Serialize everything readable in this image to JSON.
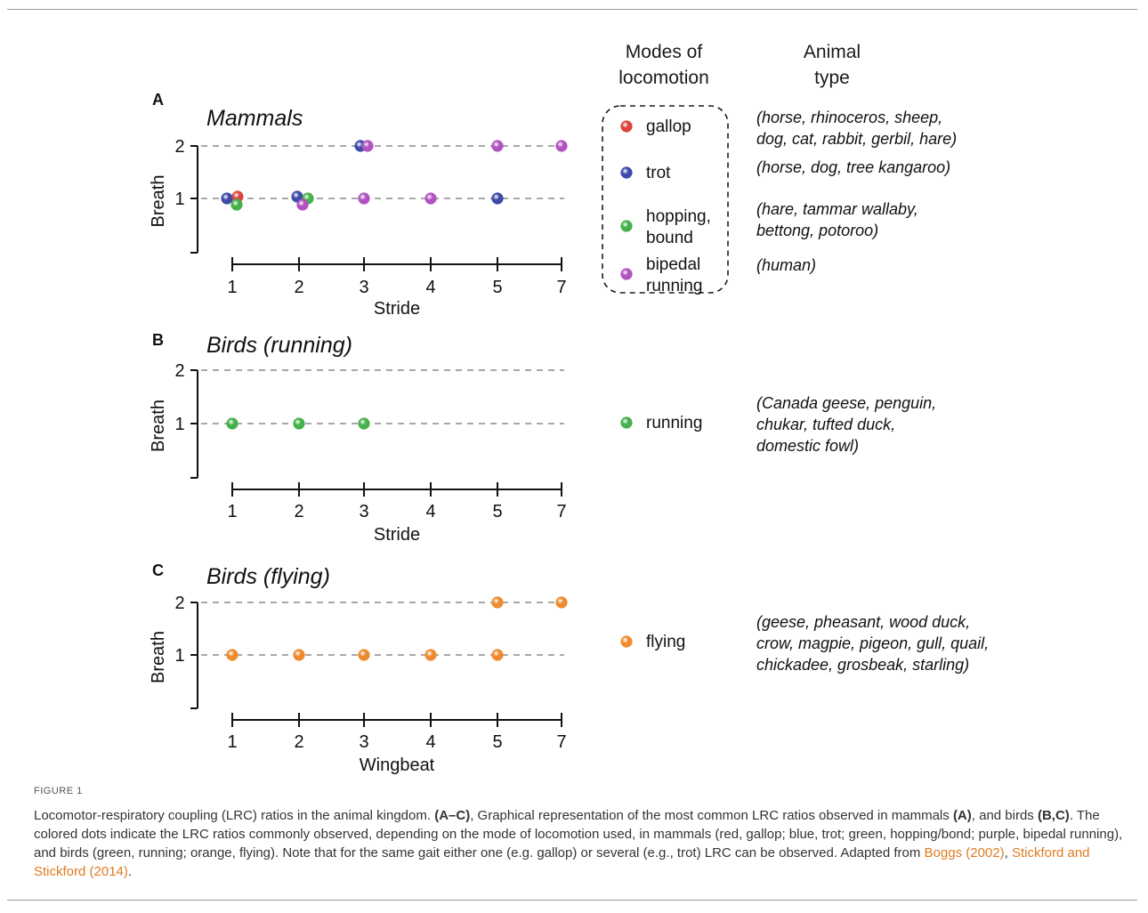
{
  "headers": {
    "modes": [
      "Modes of",
      "locomotion"
    ],
    "animal": [
      "Animal",
      "type"
    ]
  },
  "colors": {
    "gallop": "#d9443c",
    "trot": "#3b4aa8",
    "green": "#44b14a",
    "bipedal": "#b152c0",
    "flying": "#ef8a2e"
  },
  "chart_data": [
    {
      "panel": "A",
      "title": "Mammals",
      "type": "scatter",
      "xlabel": "Stride",
      "ylabel": "Breath",
      "xticks": [
        "1",
        "2",
        "3",
        "4",
        "5",
        "7"
      ],
      "yticks": [
        "1",
        "2"
      ],
      "grid": "dashed-horizontal",
      "points": [
        {
          "x": 1,
          "y": 1,
          "mode": "trot"
        },
        {
          "x": 1,
          "y": 1,
          "mode": "gallop"
        },
        {
          "x": 1,
          "y": 1,
          "mode": "hopping"
        },
        {
          "x": 2,
          "y": 1,
          "mode": "trot"
        },
        {
          "x": 2,
          "y": 1,
          "mode": "hopping"
        },
        {
          "x": 2,
          "y": 1,
          "mode": "bipedal"
        },
        {
          "x": 3,
          "y": 1,
          "mode": "bipedal"
        },
        {
          "x": 4,
          "y": 1,
          "mode": "bipedal"
        },
        {
          "x": 5,
          "y": 1,
          "mode": "trot"
        },
        {
          "x": 3,
          "y": 2,
          "mode": "trot"
        },
        {
          "x": 3,
          "y": 2,
          "mode": "bipedal"
        },
        {
          "x": 5,
          "y": 2,
          "mode": "bipedal"
        },
        {
          "x": 7,
          "y": 2,
          "mode": "bipedal"
        }
      ],
      "legend": [
        {
          "mode": "gallop",
          "label": [
            "gallop"
          ],
          "animals": [
            "(horse, rhinoceros, sheep,",
            "dog, cat, rabbit, gerbil, hare)"
          ]
        },
        {
          "mode": "trot",
          "label": [
            "trot"
          ],
          "animals": [
            "(horse, dog, tree kangaroo)"
          ]
        },
        {
          "mode": "hopping",
          "label": [
            "hopping,",
            "bound"
          ],
          "animals": [
            "(hare, tammar wallaby,",
            "bettong, potoroo)"
          ]
        },
        {
          "mode": "bipedal",
          "label": [
            "bipedal",
            "running"
          ],
          "animals": [
            "(human)"
          ]
        }
      ]
    },
    {
      "panel": "B",
      "title": "Birds (running)",
      "type": "scatter",
      "xlabel": "Stride",
      "ylabel": "Breath",
      "xticks": [
        "1",
        "2",
        "3",
        "4",
        "5",
        "7"
      ],
      "yticks": [
        "1",
        "2"
      ],
      "grid": "dashed-horizontal",
      "points": [
        {
          "x": 1,
          "y": 1,
          "mode": "running"
        },
        {
          "x": 2,
          "y": 1,
          "mode": "running"
        },
        {
          "x": 3,
          "y": 1,
          "mode": "running"
        }
      ],
      "legend": [
        {
          "mode": "running",
          "label": [
            "running"
          ],
          "animals": [
            "(Canada geese, penguin,",
            "chukar, tufted duck,",
            "domestic fowl)"
          ]
        }
      ]
    },
    {
      "panel": "C",
      "title": "Birds (flying)",
      "type": "scatter",
      "xlabel": "Wingbeat",
      "ylabel": "Breath",
      "xticks": [
        "1",
        "2",
        "3",
        "4",
        "5",
        "7"
      ],
      "yticks": [
        "1",
        "2"
      ],
      "grid": "dashed-horizontal",
      "points": [
        {
          "x": 1,
          "y": 1,
          "mode": "flying"
        },
        {
          "x": 2,
          "y": 1,
          "mode": "flying"
        },
        {
          "x": 3,
          "y": 1,
          "mode": "flying"
        },
        {
          "x": 4,
          "y": 1,
          "mode": "flying"
        },
        {
          "x": 5,
          "y": 1,
          "mode": "flying"
        },
        {
          "x": 5,
          "y": 2,
          "mode": "flying"
        },
        {
          "x": 7,
          "y": 2,
          "mode": "flying"
        }
      ],
      "legend": [
        {
          "mode": "flying",
          "label": [
            "flying"
          ],
          "animals": [
            "(geese, pheasant, wood duck,",
            "crow, magpie, pigeon, gull, quail,",
            "chickadee, grosbeak, starling)"
          ]
        }
      ]
    }
  ],
  "caption": {
    "label": "FIGURE 1",
    "t1": "Locomotor-respiratory coupling (LRC) ratios in the animal kingdom. ",
    "b1": "(A–C)",
    "t2": ", Graphical representation of the most common LRC ratios observed in mammals ",
    "b2": "(A)",
    "t3": ", and birds ",
    "b3": "(B,C)",
    "t4": ". The colored dots indicate the LRC ratios commonly observed, depending on the mode of locomotion used, in mammals (red, gallop; blue, trot; green, hopping/bond; purple, bipedal running), and birds (green, running; orange, flying). Note that for the same gait either one (e.g. gallop) or several (e.g., trot) LRC can be observed. Adapted from ",
    "ref1": "Boggs (2002)",
    "sep": ", ",
    "ref2": "Stickford and Stickford (2014)",
    "end": "."
  }
}
